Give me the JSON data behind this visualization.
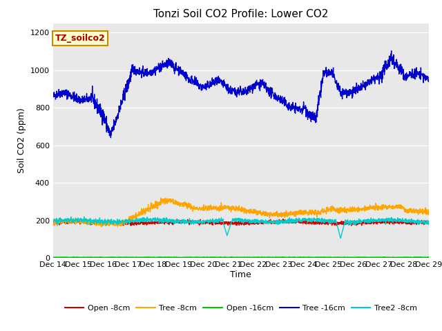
{
  "title": "Tonzi Soil CO2 Profile: Lower CO2",
  "ylabel": "Soil CO2 (ppm)",
  "xlabel": "Time",
  "tag_label": "TZ_soilco2",
  "ylim": [
    0,
    1250
  ],
  "yticks": [
    0,
    200,
    400,
    600,
    800,
    1000,
    1200
  ],
  "fig_bg": "#ffffff",
  "plot_bg": "#e8e8e8",
  "series": {
    "open_8cm": {
      "color": "#cc0000",
      "label": "Open -8cm",
      "linewidth": 1.0
    },
    "tree_8cm": {
      "color": "#ffa500",
      "label": "Tree -8cm",
      "linewidth": 1.0
    },
    "open_16cm": {
      "color": "#00cc00",
      "label": "Open -16cm",
      "linewidth": 1.5
    },
    "tree_16cm": {
      "color": "#0000cc",
      "label": "Tree -16cm",
      "linewidth": 1.0
    },
    "tree2_8cm": {
      "color": "#00cccc",
      "label": "Tree2 -8cm",
      "linewidth": 1.0
    }
  },
  "n_points": 2000,
  "x_start": 0,
  "x_end": 15,
  "xtick_labels": [
    "Dec 14",
    "Dec 15",
    "Dec 16",
    "Dec 17",
    "Dec 18",
    "Dec 19",
    "Dec 20",
    "Dec 21",
    "Dec 22",
    "Dec 23",
    "Dec 24",
    "Dec 25",
    "Dec 26",
    "Dec 27",
    "Dec 28",
    "Dec 29"
  ],
  "xtick_positions": [
    0,
    1,
    2,
    3,
    4,
    5,
    6,
    7,
    8,
    9,
    10,
    11,
    12,
    13,
    14,
    15
  ]
}
